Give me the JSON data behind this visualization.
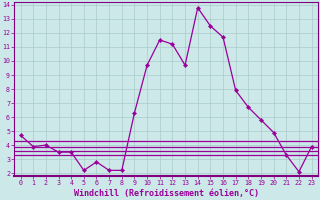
{
  "xlabel": "Windchill (Refroidissement éolien,°C)",
  "x": [
    0,
    1,
    2,
    3,
    4,
    5,
    6,
    7,
    8,
    9,
    10,
    11,
    12,
    13,
    14,
    15,
    16,
    17,
    18,
    19,
    20,
    21,
    22,
    23
  ],
  "main_line": [
    4.7,
    3.9,
    4.0,
    3.5,
    3.5,
    2.2,
    2.8,
    2.2,
    2.2,
    6.3,
    9.7,
    11.5,
    11.2,
    9.7,
    13.8,
    12.5,
    11.7,
    7.9,
    6.7,
    5.8,
    4.9,
    3.3,
    2.1,
    3.9
  ],
  "flat_line1": 4.3,
  "flat_line2": 3.9,
  "flat_line3": 3.6,
  "flat_line4": 3.3,
  "line_color": "#990099",
  "bg_color": "#cce8e8",
  "grid_color": "#aacccc",
  "spine_color": "#800080",
  "ylim": [
    1.8,
    14.2
  ],
  "xlim": [
    -0.5,
    23.5
  ],
  "yticks": [
    2,
    3,
    4,
    5,
    6,
    7,
    8,
    9,
    10,
    11,
    12,
    13,
    14
  ],
  "xticks": [
    0,
    1,
    2,
    3,
    4,
    5,
    6,
    7,
    8,
    9,
    10,
    11,
    12,
    13,
    14,
    15,
    16,
    17,
    18,
    19,
    20,
    21,
    22,
    23
  ],
  "tick_fontsize": 4.8,
  "xlabel_fontsize": 6.0,
  "markersize": 2.2,
  "linewidth": 0.9
}
